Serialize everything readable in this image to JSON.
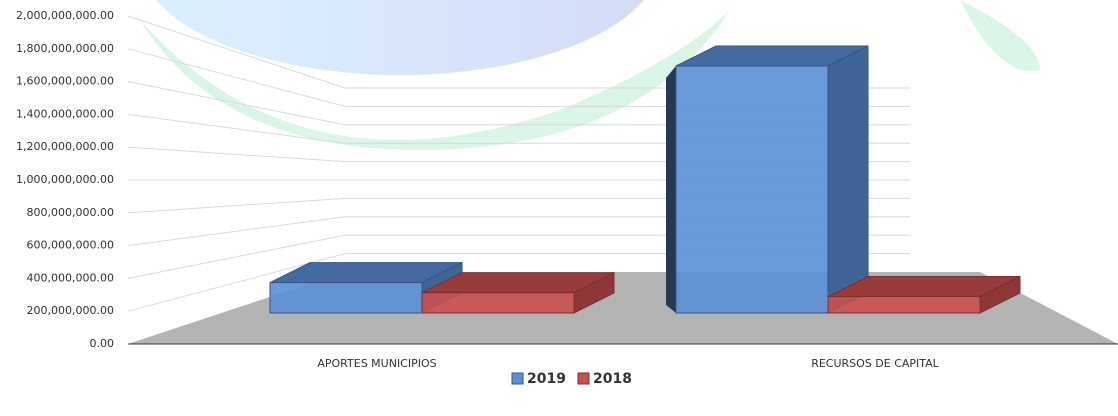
{
  "chart_data": {
    "type": "bar3d",
    "categories": [
      "APORTES MUNICIPIOS",
      "RECURSOS DE CAPITAL"
    ],
    "series": [
      {
        "name": "2019",
        "color": "#5b8fd6",
        "values": [
          240000000,
          1950000000
        ]
      },
      {
        "name": "2018",
        "color": "#c9504f",
        "values": [
          160000000,
          130000000
        ]
      }
    ],
    "ylim": [
      0,
      2000000000
    ],
    "yticks": [
      {
        "value": 0,
        "label": "0.00"
      },
      {
        "value": 200000000,
        "label": "200,000,000.00"
      },
      {
        "value": 400000000,
        "label": "400,000,000.00"
      },
      {
        "value": 600000000,
        "label": "600,000,000.00"
      },
      {
        "value": 800000000,
        "label": "800,000,000.00"
      },
      {
        "value": 1000000000,
        "label": "1,000,000,000.00"
      },
      {
        "value": 1200000000,
        "label": "1,200,000,000.00"
      },
      {
        "value": 1400000000,
        "label": "1,400,000,000.00"
      },
      {
        "value": 1600000000,
        "label": "1,600,000,000.00"
      },
      {
        "value": 1800000000,
        "label": "1,800,000,000.00"
      },
      {
        "value": 2000000000,
        "label": "2,000,000,000.00"
      }
    ],
    "grid": true,
    "legend": "bottom"
  }
}
